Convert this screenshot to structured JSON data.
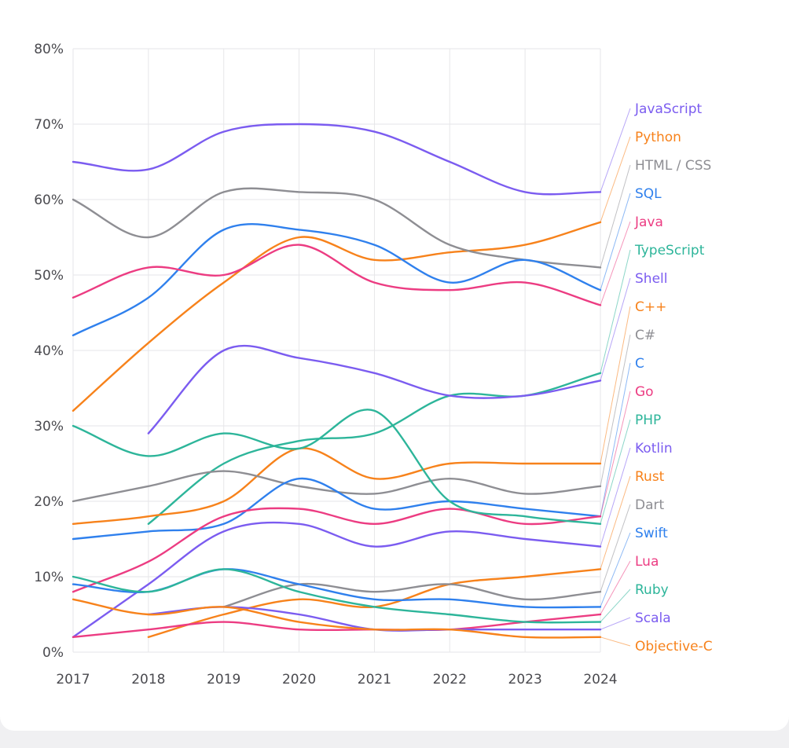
{
  "chart_data": {
    "type": "line",
    "title": "",
    "xlabel": "",
    "ylabel": "",
    "x": [
      "2017",
      "2018",
      "2019",
      "2020",
      "2021",
      "2022",
      "2023",
      "2024"
    ],
    "ylim": [
      0,
      80
    ],
    "yticks": [
      "0%",
      "10%",
      "20%",
      "30%",
      "40%",
      "50%",
      "60%",
      "70%",
      "80%"
    ],
    "grid": true,
    "legend": "right, labels connected to line ends",
    "series": [
      {
        "name": "JavaScript",
        "color": "#7b5cf0",
        "values": [
          65,
          64,
          69,
          70,
          69,
          65,
          61,
          61
        ]
      },
      {
        "name": "Python",
        "color": "#f7821b",
        "values": [
          32,
          41,
          49,
          55,
          52,
          53,
          54,
          57
        ]
      },
      {
        "name": "HTML / CSS",
        "color": "#8e8e93",
        "values": [
          60,
          55,
          61,
          61,
          60,
          54,
          52,
          51
        ]
      },
      {
        "name": "SQL",
        "color": "#2f80ed",
        "values": [
          42,
          47,
          56,
          56,
          54,
          49,
          52,
          48
        ]
      },
      {
        "name": "Java",
        "color": "#ec3c82",
        "values": [
          47,
          51,
          50,
          54,
          49,
          48,
          49,
          46
        ]
      },
      {
        "name": "TypeScript",
        "color": "#2db59a",
        "values": [
          null,
          17,
          25,
          28,
          29,
          34,
          34,
          37
        ]
      },
      {
        "name": "Shell",
        "color": "#7b5cf0",
        "values": [
          null,
          29,
          40,
          39,
          37,
          34,
          34,
          36
        ]
      },
      {
        "name": "C++",
        "color": "#f7821b",
        "values": [
          17,
          18,
          20,
          27,
          23,
          25,
          25,
          25
        ]
      },
      {
        "name": "C#",
        "color": "#8e8e93",
        "values": [
          20,
          22,
          24,
          22,
          21,
          23,
          21,
          22
        ]
      },
      {
        "name": "C",
        "color": "#2f80ed",
        "values": [
          15,
          16,
          17,
          23,
          19,
          20,
          19,
          18
        ]
      },
      {
        "name": "Go",
        "color": "#ec3c82",
        "values": [
          8,
          12,
          18,
          19,
          17,
          19,
          17,
          18
        ]
      },
      {
        "name": "PHP",
        "color": "#2db59a",
        "values": [
          30,
          26,
          29,
          27,
          32,
          20,
          18,
          17
        ]
      },
      {
        "name": "Kotlin",
        "color": "#7b5cf0",
        "values": [
          2,
          9,
          16,
          17,
          14,
          16,
          15,
          14
        ]
      },
      {
        "name": "Rust",
        "color": "#f7821b",
        "values": [
          null,
          2,
          5,
          7,
          6,
          9,
          10,
          11
        ]
      },
      {
        "name": "Dart",
        "color": "#8e8e93",
        "values": [
          null,
          null,
          6,
          9,
          8,
          9,
          7,
          8
        ]
      },
      {
        "name": "Swift",
        "color": "#2f80ed",
        "values": [
          9,
          8,
          11,
          9,
          7,
          7,
          6,
          6
        ]
      },
      {
        "name": "Lua",
        "color": "#ec3c82",
        "values": [
          2,
          3,
          4,
          3,
          3,
          3,
          4,
          5
        ]
      },
      {
        "name": "Ruby",
        "color": "#2db59a",
        "values": [
          10,
          8,
          11,
          8,
          6,
          5,
          4,
          4
        ]
      },
      {
        "name": "Scala",
        "color": "#7b5cf0",
        "values": [
          null,
          5,
          6,
          5,
          3,
          3,
          3,
          3
        ]
      },
      {
        "name": "Objective-C",
        "color": "#f7821b",
        "values": [
          7,
          5,
          6,
          4,
          3,
          3,
          2,
          2
        ]
      }
    ]
  }
}
